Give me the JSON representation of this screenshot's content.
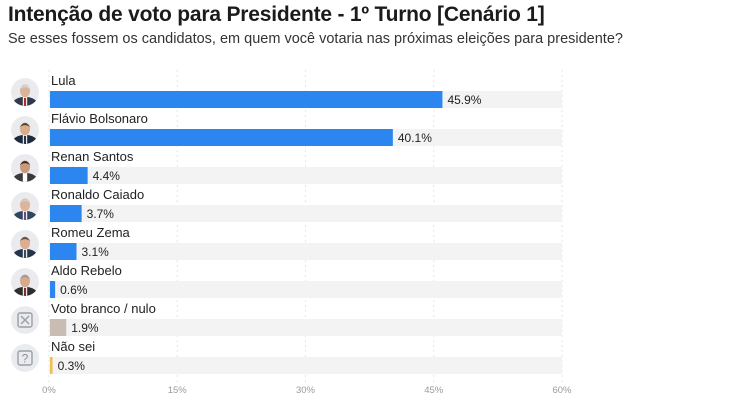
{
  "title": "Intenção de voto para Presidente - 1º Turno [Cenário 1]",
  "subtitle": "Se esses fossem os candidatos, em quem você votaria nas próximas eleições para presidente?",
  "colors": {
    "candidate": "#2b86f0",
    "blank": "#c9bdb3",
    "unknown": "#f0c04d",
    "track": "#f3f3f3"
  },
  "chart_data": {
    "type": "bar",
    "orientation": "horizontal",
    "categories": [
      "Lula",
      "Flávio Bolsonaro",
      "Renan Santos",
      "Ronaldo Caiado",
      "Romeu Zema",
      "Aldo Rebelo",
      "Voto branco / nulo",
      "Não sei"
    ],
    "values": [
      45.9,
      40.1,
      4.4,
      3.7,
      3.1,
      0.6,
      1.9,
      0.3
    ],
    "value_labels": [
      "45.9%",
      "40.1%",
      "4.4%",
      "3.7%",
      "3.1%",
      "0.6%",
      "1.9%",
      "0.3%"
    ],
    "bar_colors": [
      "#2b86f0",
      "#2b86f0",
      "#2b86f0",
      "#2b86f0",
      "#2b86f0",
      "#2b86f0",
      "#c9bdb3",
      "#f0c04d"
    ],
    "icons": [
      "avatar-lula-icon",
      "avatar-flavio-bolsonaro-icon",
      "avatar-renan-santos-icon",
      "avatar-ronaldo-caiado-icon",
      "avatar-romeu-zema-icon",
      "avatar-aldo-rebelo-icon",
      "blank-vote-x-icon",
      "question-mark-icon"
    ],
    "xlim": [
      0,
      60
    ],
    "xticks": [
      0,
      15,
      30,
      45,
      60
    ],
    "xtick_labels": [
      "0%",
      "15%",
      "30%",
      "45%",
      "60%"
    ],
    "grid": true
  }
}
